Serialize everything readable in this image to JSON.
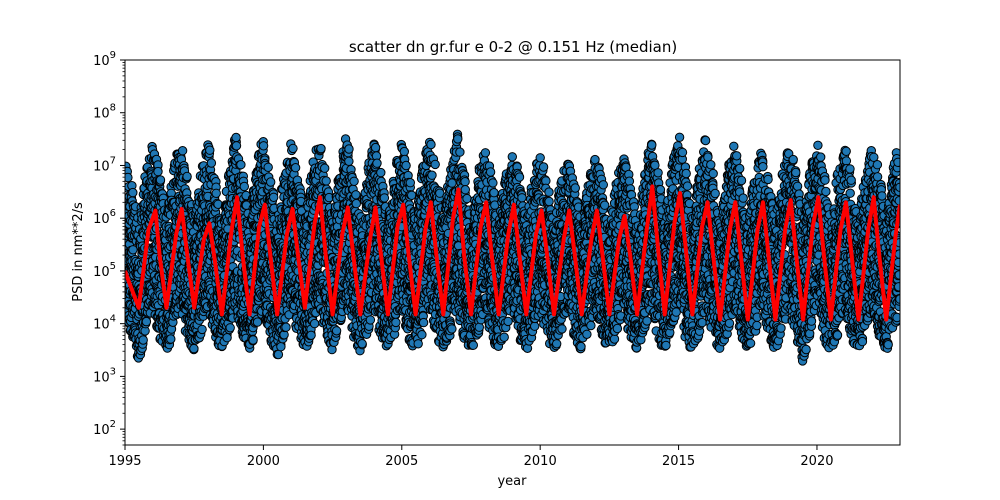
{
  "chart_data": {
    "type": "scatter",
    "title": "scatter dn gr.fur e 0-2 @ 0.151 Hz (median)",
    "xlabel": "year",
    "ylabel": "PSD in nm**2/s",
    "xlim": [
      1995,
      2023
    ],
    "ylim": [
      50,
      1000000000
    ],
    "yscale": "log",
    "grid": false,
    "x_ticks": [
      "1995",
      "2000",
      "2005",
      "2010",
      "2015",
      "2020"
    ],
    "y_ticks": [
      {
        "base": "10",
        "exp": "2"
      },
      {
        "base": "10",
        "exp": "3"
      },
      {
        "base": "10",
        "exp": "4"
      },
      {
        "base": "10",
        "exp": "5"
      },
      {
        "base": "10",
        "exp": "6"
      },
      {
        "base": "10",
        "exp": "7"
      },
      {
        "base": "10",
        "exp": "8"
      },
      {
        "base": "10",
        "exp": "9"
      }
    ],
    "colors": {
      "scatter_fill": "#1f77b4",
      "scatter_edge": "#000000",
      "median_line": "#ff0000"
    },
    "series": [
      {
        "type": "scatter",
        "description_of_points": "daily PSD values, seasonal oscillation",
        "x": [
          1995.0,
          1995.25,
          1995.5,
          1995.75,
          1996.0,
          1996.25,
          1996.5,
          1996.75,
          1997.0,
          1997.25,
          1997.5,
          1997.75,
          1998.0,
          1998.25,
          1998.5,
          1998.75,
          1999.0,
          1999.25,
          1999.5,
          1999.75,
          2000.0,
          2000.25,
          2000.5,
          2000.75,
          2001.0,
          2001.25,
          2001.5,
          2001.75,
          2002.0,
          2002.25,
          2002.5,
          2002.75,
          2003.0,
          2003.25,
          2003.5,
          2003.75,
          2004.0,
          2004.25,
          2004.5,
          2004.75,
          2005.0,
          2005.25,
          2005.5,
          2005.75,
          2006.0,
          2006.25,
          2006.5,
          2006.75,
          2007.0,
          2007.25,
          2007.5,
          2007.75,
          2008.0,
          2008.25,
          2008.5,
          2008.75,
          2009.0,
          2009.25,
          2009.5,
          2009.75,
          2010.0,
          2010.25,
          2010.5,
          2010.75,
          2011.0,
          2011.25,
          2011.5,
          2011.75,
          2012.0,
          2012.25,
          2012.5,
          2012.75,
          2013.0,
          2013.25,
          2013.5,
          2013.75,
          2014.0,
          2014.25,
          2014.5,
          2014.75,
          2015.0,
          2015.25,
          2015.5,
          2015.75,
          2016.0,
          2016.25,
          2016.5,
          2016.75,
          2017.0,
          2017.25,
          2017.5,
          2017.75,
          2018.0,
          2018.25,
          2018.5,
          2018.75,
          2019.0,
          2019.25,
          2019.5,
          2019.75,
          2020.0,
          2020.25,
          2020.5,
          2020.75,
          2021.0,
          2021.25,
          2021.5,
          2021.75,
          2022.0,
          2022.25,
          2022.5,
          2022.75,
          2023.0
        ],
        "y_upper_envelope": [
          15000000,
          5000000,
          1000000,
          8000000,
          30000000,
          8000000,
          1000000,
          9000000,
          30000000,
          8000000,
          900000,
          8000000,
          35000000,
          7000000,
          900000,
          8000000,
          40000000,
          8000000,
          1000000,
          9000000,
          50000000,
          9000000,
          900000,
          8000000,
          30000000,
          8000000,
          900000,
          9000000,
          35000000,
          8000000,
          900000,
          9000000,
          40000000,
          8000000,
          900000,
          9000000,
          30000000,
          8000000,
          900000,
          9000000,
          30000000,
          8000000,
          900000,
          9000000,
          40000000,
          9000000,
          1000000,
          9000000,
          45000000,
          9000000,
          900000,
          8000000,
          20000000,
          7000000,
          800000,
          8000000,
          18000000,
          7000000,
          800000,
          8000000,
          15000000,
          6000000,
          700000,
          6000000,
          12000000,
          6000000,
          700000,
          6000000,
          15000000,
          6000000,
          700000,
          6000000,
          15000000,
          6000000,
          700000,
          7000000,
          30000000,
          8000000,
          900000,
          9000000,
          50000000,
          9000000,
          900000,
          9000000,
          40000000,
          8000000,
          800000,
          8000000,
          25000000,
          8000000,
          800000,
          8000000,
          20000000,
          7000000,
          800000,
          8000000,
          30000000,
          8000000,
          800000,
          8000000,
          30000000,
          8000000,
          800000,
          8000000,
          25000000,
          8000000,
          800000,
          8000000,
          30000000,
          8000000,
          900000,
          9000000,
          50000000
        ],
        "y_lower_envelope": [
          20000,
          5000,
          2000,
          6000,
          20000,
          5000,
          3000,
          6000,
          20000,
          5000,
          3000,
          6000,
          20000,
          5000,
          3000,
          6000,
          20000,
          5000,
          3000,
          6000,
          20000,
          5000,
          2000,
          6000,
          20000,
          5000,
          3000,
          6000,
          20000,
          5000,
          3000,
          6000,
          20000,
          5000,
          3000,
          6000,
          20000,
          5000,
          3000,
          6000,
          20000,
          5000,
          3000,
          6000,
          20000,
          5000,
          3000,
          6000,
          20000,
          5000,
          3000,
          6000,
          20000,
          5000,
          3000,
          6000,
          20000,
          5000,
          3000,
          6000,
          20000,
          5000,
          3000,
          6000,
          20000,
          5000,
          3000,
          6000,
          20000,
          5000,
          3000,
          6000,
          20000,
          5000,
          3000,
          6000,
          20000,
          5000,
          3000,
          6000,
          20000,
          5000,
          3000,
          6000,
          20000,
          5000,
          3000,
          6000,
          20000,
          5000,
          3000,
          6000,
          20000,
          5000,
          3000,
          6000,
          20000,
          5000,
          1800,
          6000,
          20000,
          5000,
          3000,
          6000,
          20000,
          5000,
          3000,
          6000,
          20000,
          5000,
          3000,
          6000,
          20000
        ]
      },
      {
        "type": "line",
        "description_of_points": "median",
        "x": [
          1995.0,
          1995.15,
          1995.5,
          1995.85,
          1996.1,
          1996.25,
          1996.5,
          1996.85,
          1997.05,
          1997.25,
          1997.5,
          1997.85,
          1998.05,
          1998.25,
          1998.5,
          1998.85,
          1999.05,
          1999.25,
          1999.5,
          1999.85,
          2000.05,
          2000.25,
          2000.5,
          2000.85,
          2001.05,
          2001.25,
          2001.5,
          2001.85,
          2002.05,
          2002.25,
          2002.5,
          2002.85,
          2003.05,
          2003.25,
          2003.5,
          2003.85,
          2004.05,
          2004.25,
          2004.5,
          2004.85,
          2005.05,
          2005.25,
          2005.5,
          2005.85,
          2006.05,
          2006.25,
          2006.5,
          2006.85,
          2007.05,
          2007.25,
          2007.5,
          2007.85,
          2008.05,
          2008.25,
          2008.5,
          2008.85,
          2009.05,
          2009.25,
          2009.5,
          2009.85,
          2010.05,
          2010.25,
          2010.5,
          2010.85,
          2011.05,
          2011.25,
          2011.5,
          2011.85,
          2012.05,
          2012.25,
          2012.5,
          2012.85,
          2013.05,
          2013.25,
          2013.5,
          2013.85,
          2014.05,
          2014.25,
          2014.5,
          2014.85,
          2015.05,
          2015.25,
          2015.5,
          2015.85,
          2016.05,
          2016.25,
          2016.5,
          2016.85,
          2017.05,
          2017.25,
          2017.5,
          2017.85,
          2018.05,
          2018.25,
          2018.5,
          2018.85,
          2019.05,
          2019.25,
          2019.5,
          2019.85,
          2020.05,
          2020.25,
          2020.5,
          2020.85,
          2021.05,
          2021.25,
          2021.5,
          2021.85,
          2022.05,
          2022.25,
          2022.5,
          2022.85,
          2023.0
        ],
        "y": [
          100000,
          60000,
          20000,
          600000,
          1400000,
          200000,
          20000,
          500000,
          1500000,
          200000,
          20000,
          400000,
          800000,
          150000,
          15000,
          600000,
          2500000,
          200000,
          15000,
          700000,
          1800000,
          200000,
          15000,
          500000,
          1500000,
          200000,
          20000,
          800000,
          2500000,
          200000,
          15000,
          500000,
          1600000,
          200000,
          15000,
          400000,
          1600000,
          200000,
          15000,
          700000,
          1800000,
          200000,
          15000,
          600000,
          2000000,
          200000,
          15000,
          1000000,
          3500000,
          200000,
          15000,
          700000,
          2000000,
          200000,
          15000,
          500000,
          1800000,
          200000,
          15000,
          500000,
          1400000,
          200000,
          15000,
          400000,
          1400000,
          200000,
          15000,
          400000,
          1400000,
          200000,
          15000,
          400000,
          1100000,
          200000,
          15000,
          600000,
          4000000,
          300000,
          15000,
          800000,
          3000000,
          300000,
          15000,
          700000,
          2000000,
          200000,
          12000,
          600000,
          2000000,
          200000,
          12000,
          600000,
          2000000,
          200000,
          12000,
          600000,
          2200000,
          200000,
          12000,
          700000,
          2500000,
          200000,
          12000,
          600000,
          2000000,
          200000,
          12000,
          600000,
          2500000,
          200000,
          12000,
          500000,
          1800000
        ]
      }
    ]
  }
}
